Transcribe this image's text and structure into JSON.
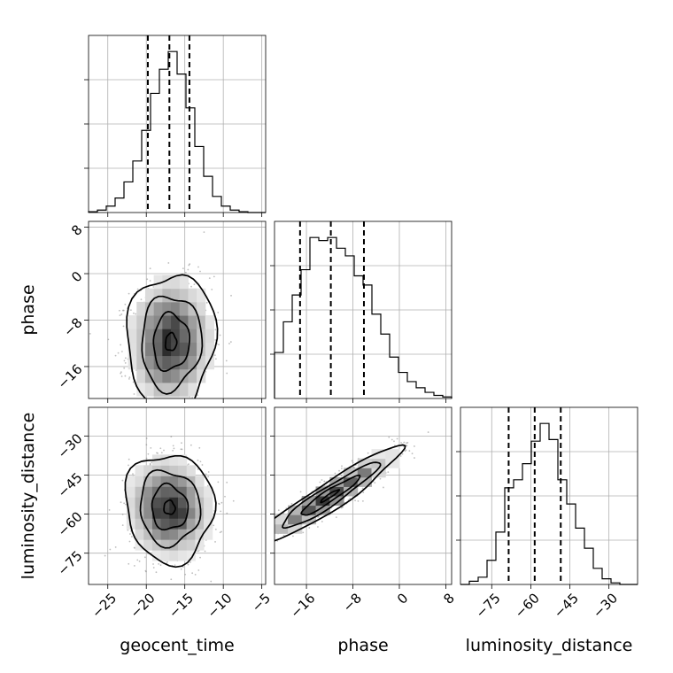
{
  "chart_data": {
    "type": "corner",
    "parameters": [
      "geocent_time",
      "phase",
      "luminosity_distance"
    ],
    "axes": {
      "geocent_time": {
        "range": [
          -27.5,
          -4.5
        ],
        "ticks": [
          -25,
          -20,
          -15,
          -10,
          -5
        ],
        "tick_labels": [
          "−25",
          "−20",
          "−15",
          "−10",
          "−5"
        ]
      },
      "phase": {
        "range": [
          -21.5,
          9
        ],
        "ticks": [
          -16,
          -8,
          0,
          8
        ],
        "tick_labels": [
          "−16",
          "−8",
          "0",
          "8"
        ]
      },
      "luminosity_distance": {
        "range": [
          -87,
          -19
        ],
        "ticks": [
          -75,
          -60,
          -45,
          -30
        ],
        "tick_labels": [
          "−75",
          "−60",
          "−45",
          "−30"
        ]
      }
    },
    "quantiles": {
      "geocent_time": [
        -19.8,
        -17.0,
        -14.4
      ],
      "phase": [
        -17.1,
        -11.8,
        -6.1
      ],
      "luminosity_distance": [
        -68.5,
        -58.5,
        -48.5
      ]
    },
    "histograms": {
      "geocent_time": {
        "bin_edges": [
          -27.5,
          -26.35,
          -25.2,
          -24.05,
          -22.9,
          -21.75,
          -20.6,
          -19.45,
          -18.3,
          -17.15,
          -16.0,
          -14.85,
          -13.7,
          -12.55,
          -11.4,
          -10.25,
          -9.1,
          -7.95,
          -6.8,
          -5.65,
          -4.5
        ],
        "counts": [
          1,
          3,
          8,
          18,
          38,
          64,
          102,
          148,
          178,
          200,
          172,
          130,
          82,
          45,
          20,
          8,
          3,
          1,
          0,
          0
        ]
      },
      "phase": {
        "bin_edges": [
          -21.5,
          -19.975,
          -18.45,
          -16.925,
          -15.4,
          -13.875,
          -12.35,
          -10.825,
          -9.3,
          -7.775,
          -6.25,
          -4.725,
          -3.2,
          -1.675,
          -0.15,
          1.375,
          2.9,
          4.425,
          5.95,
          7.475,
          9.0
        ],
        "counts": [
          60,
          100,
          135,
          168,
          210,
          206,
          210,
          196,
          186,
          160,
          148,
          110,
          84,
          54,
          34,
          22,
          14,
          8,
          4,
          2
        ]
      },
      "luminosity_distance": {
        "bin_edges": [
          -87,
          -83.6,
          -80.2,
          -76.8,
          -73.4,
          -70,
          -66.6,
          -63.2,
          -59.8,
          -56.4,
          -53,
          -49.6,
          -46.2,
          -42.8,
          -39.4,
          -36,
          -32.6,
          -29.2,
          -25.8,
          -22.4,
          -19
        ],
        "counts": [
          0,
          4,
          9,
          30,
          65,
          120,
          130,
          150,
          178,
          200,
          180,
          130,
          100,
          70,
          45,
          20,
          7,
          2,
          0,
          0
        ]
      }
    },
    "joint": {
      "phase_vs_geocent_time": {
        "center": [
          -16.8,
          -11.8
        ],
        "spread": [
          2.6,
          5.4
        ],
        "correlation": 0.05
      },
      "luminosity_distance_vs_geocent_time": {
        "center": [
          -17.0,
          -57.5
        ],
        "spread": [
          2.6,
          9.5
        ],
        "correlation": -0.05
      },
      "luminosity_distance_vs_phase": {
        "center": [
          -12.0,
          -53.0
        ],
        "spread": [
          5.6,
          8.4
        ],
        "correlation": 0.94
      }
    },
    "title": "",
    "grid": true
  }
}
